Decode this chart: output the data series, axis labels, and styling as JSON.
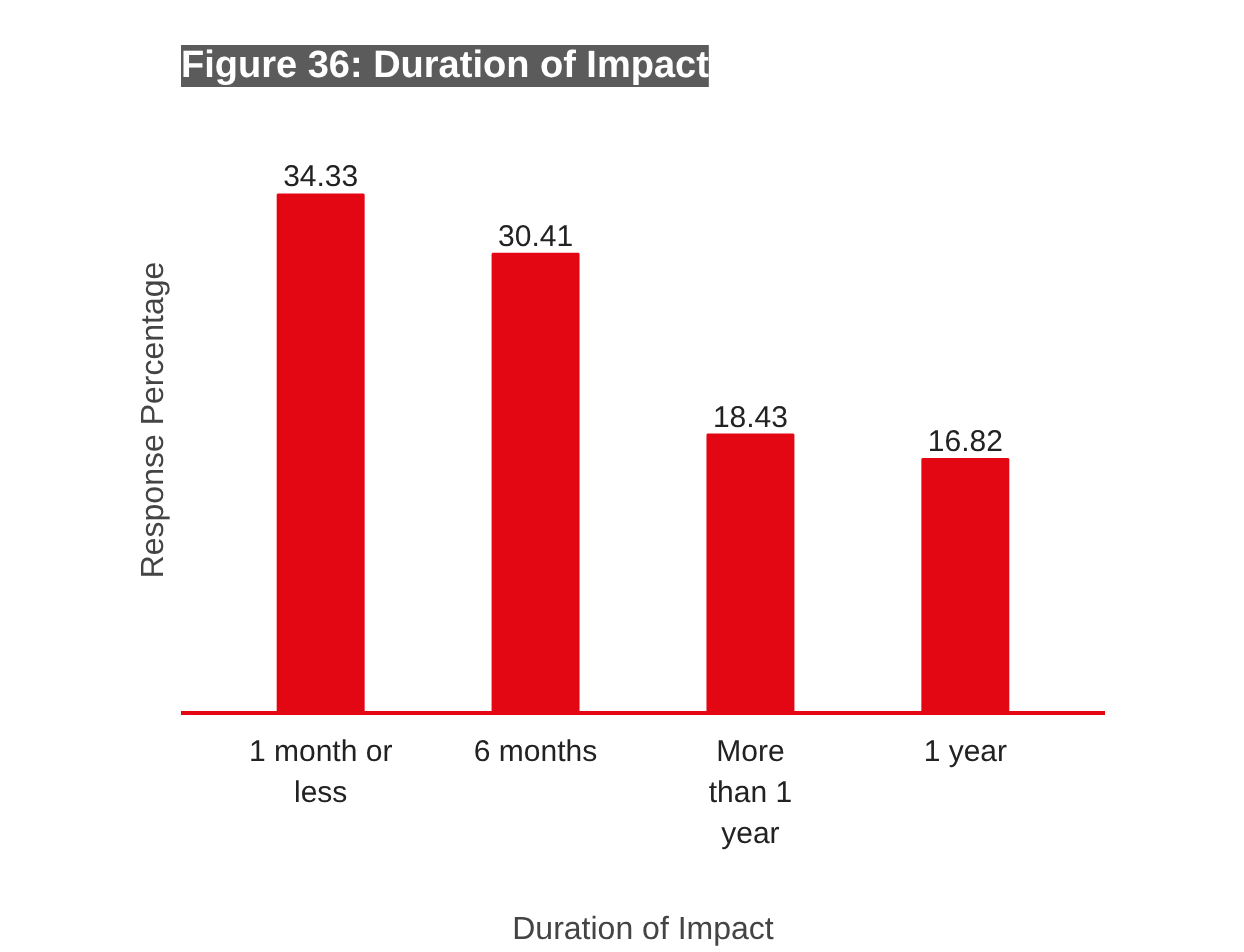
{
  "chart_data": {
    "type": "bar",
    "title": "Figure 36: Duration of Impact",
    "xlabel": "Duration of Impact",
    "ylabel": "Response Percentage",
    "categories": [
      "1 month or\nless",
      "6 months",
      "More\nthan 1\nyear",
      "1 year"
    ],
    "values": [
      34.33,
      30.41,
      18.43,
      16.82
    ],
    "color": "#e30613",
    "data_labels": true
  }
}
